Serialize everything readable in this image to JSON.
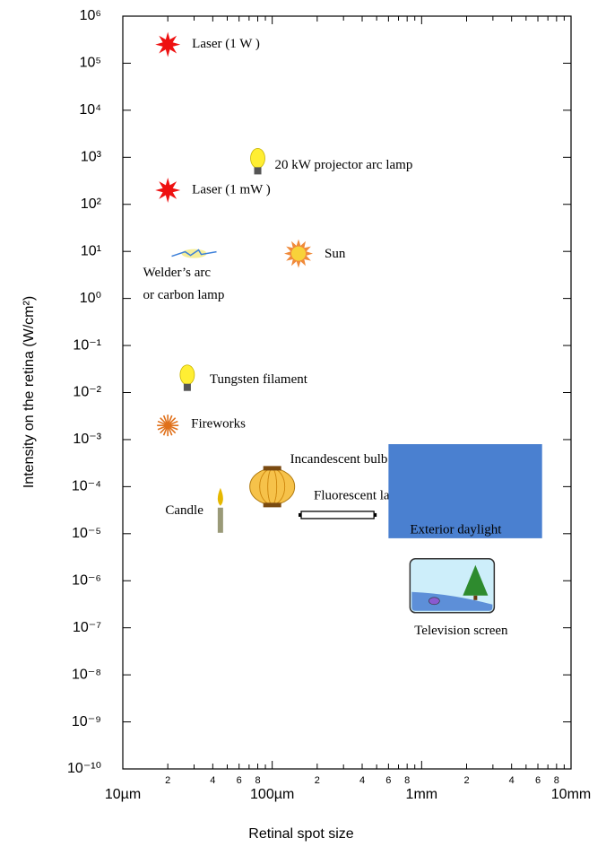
{
  "chart_data": {
    "type": "scatter",
    "x_label": "Retinal spot size",
    "y_label": "Intensity on the retina (W/cm²)",
    "xscale": "log",
    "yscale": "log",
    "xlim": [
      10,
      10000
    ],
    "ylim": [
      1e-10,
      1000000
    ],
    "xticks": [
      {
        "value": 10,
        "label": "10µm"
      },
      {
        "value": 20,
        "label": "2"
      },
      {
        "value": 40,
        "label": "4"
      },
      {
        "value": 60,
        "label": "6"
      },
      {
        "value": 80,
        "label": "8"
      },
      {
        "value": 100,
        "label": "100µm"
      },
      {
        "value": 200,
        "label": "2"
      },
      {
        "value": 400,
        "label": "4"
      },
      {
        "value": 600,
        "label": "6"
      },
      {
        "value": 800,
        "label": "8"
      },
      {
        "value": 1000,
        "label": "1mm"
      },
      {
        "value": 2000,
        "label": "2"
      },
      {
        "value": 4000,
        "label": "4"
      },
      {
        "value": 6000,
        "label": "6"
      },
      {
        "value": 8000,
        "label": "8"
      },
      {
        "value": 10000,
        "label": "10mm"
      }
    ],
    "xminor": [
      30,
      50,
      70,
      90,
      300,
      500,
      700,
      900,
      3000,
      5000,
      7000,
      9000
    ],
    "yticks": [
      {
        "value": 1000000,
        "label": "10⁶"
      },
      {
        "value": 100000,
        "label": "10⁵"
      },
      {
        "value": 10000,
        "label": "10⁴"
      },
      {
        "value": 1000,
        "label": "10³"
      },
      {
        "value": 100,
        "label": "10²"
      },
      {
        "value": 10,
        "label": "10¹"
      },
      {
        "value": 1,
        "label": "10⁰"
      },
      {
        "value": 0.1,
        "label": "10⁻¹"
      },
      {
        "value": 0.01,
        "label": "10⁻²"
      },
      {
        "value": 0.001,
        "label": "10⁻³"
      },
      {
        "value": 0.0001,
        "label": "10⁻⁴"
      },
      {
        "value": 1e-05,
        "label": "10⁻⁵"
      },
      {
        "value": 1e-06,
        "label": "10⁻⁶"
      },
      {
        "value": 1e-07,
        "label": "10⁻⁷"
      },
      {
        "value": 1e-08,
        "label": "10⁻⁸"
      },
      {
        "value": 1e-09,
        "label": "10⁻⁹"
      },
      {
        "value": 1e-10,
        "label": "10⁻¹⁰"
      }
    ],
    "points": [
      {
        "label": "Laser (1 W )",
        "x": 20,
        "y": 250000,
        "marker": "star",
        "color": "#ee1111"
      },
      {
        "label": "20 kW projector arc lamp",
        "x": 80,
        "y": 800,
        "marker": "bulb",
        "color": "#ffee33"
      },
      {
        "label": "Laser (1 mW )",
        "x": 20,
        "y": 200,
        "marker": "star",
        "color": "#ee1111"
      },
      {
        "label": [
          "Welder’s arc",
          "or carbon lamp"
        ],
        "x": 30,
        "y": 9,
        "marker": "arc",
        "color": "#3b7fd9"
      },
      {
        "label": "Sun",
        "x": 150,
        "y": 9,
        "marker": "sun",
        "color": "#f08a3a"
      },
      {
        "label": "Tungsten filament",
        "x": 27,
        "y": 0.02,
        "marker": "bulb",
        "color": "#ffee33"
      },
      {
        "label": "Fireworks",
        "x": 20,
        "y": 0.002,
        "marker": "fireworks",
        "color": "#e0701a"
      },
      {
        "label": "Incandescent bulb",
        "x": 100,
        "y": 0.0001,
        "marker": "lantern",
        "color": "#f6c24a"
      },
      {
        "label": "Candle",
        "x": 45,
        "y": 3e-05,
        "marker": "candle",
        "color": "#e6b800"
      },
      {
        "label": "Fluorescent lamp",
        "x_range": [
          150,
          500
        ],
        "y": 2.5e-05,
        "marker": "tube",
        "color": "#ffffff"
      },
      {
        "label": "Exterior daylight",
        "x_range": [
          600,
          6400
        ],
        "y_range": [
          8e-06,
          0.0008
        ],
        "marker": "rect",
        "color": "#4a80d0"
      },
      {
        "label": "Television screen",
        "x": 1600,
        "y": 7.5e-07,
        "marker": "tv",
        "color": "#cdeefa"
      }
    ]
  }
}
